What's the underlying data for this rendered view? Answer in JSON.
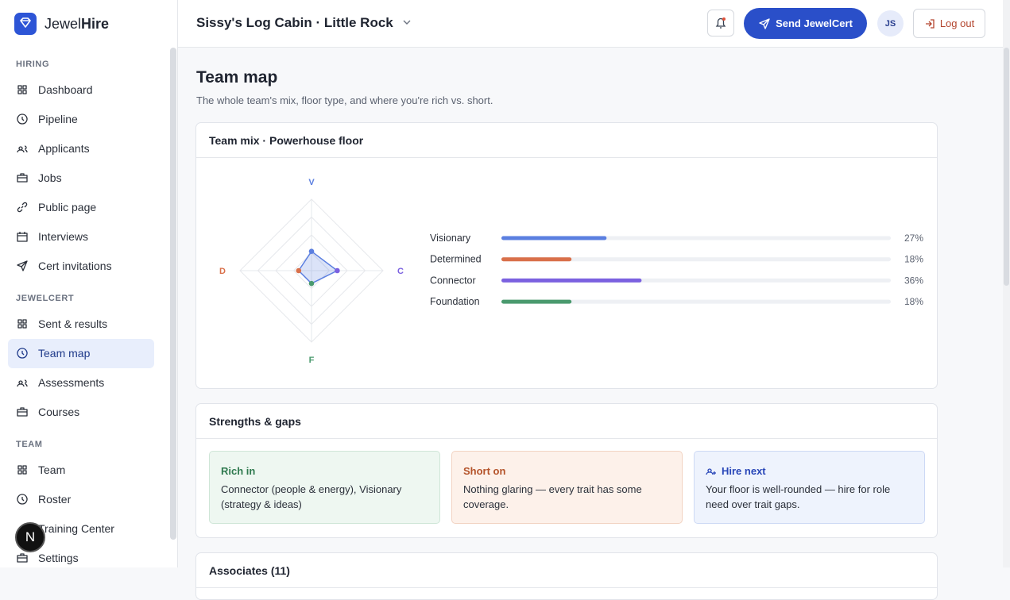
{
  "brand": {
    "first": "Jewel",
    "second": "Hire"
  },
  "sidebar": {
    "active": "Team map",
    "sections": [
      {
        "label": "HIRING",
        "items": [
          "Dashboard",
          "Pipeline",
          "Applicants",
          "Jobs",
          "Public page",
          "Interviews",
          "Cert invitations"
        ]
      },
      {
        "label": "JEWELCERT",
        "items": [
          "Sent & results",
          "Team map",
          "Assessments",
          "Courses"
        ]
      },
      {
        "label": "TEAM",
        "items": [
          "Team",
          "Roster",
          "Training Center",
          "Settings"
        ]
      }
    ]
  },
  "dev_badge": "N",
  "topbar": {
    "location": "Sissy's Log Cabin · Little Rock",
    "send_button": "Send JewelCert",
    "avatar": "JS",
    "logout": "Log out"
  },
  "page": {
    "title": "Team map",
    "subtitle": "The whole team's mix, floor type, and where you're rich vs. short."
  },
  "team_mix": {
    "title": "Team mix · Powerhouse floor",
    "radar_range": [
      0,
      100
    ],
    "radar_rings": [
      25,
      50,
      75,
      100
    ],
    "bar_range": [
      0,
      100
    ],
    "traits": [
      {
        "name": "Visionary",
        "letter": "V",
        "value": 27,
        "value_label": "27%",
        "color": "#5b7fe0"
      },
      {
        "name": "Determined",
        "letter": "D",
        "value": 18,
        "value_label": "18%",
        "color": "#d9704a"
      },
      {
        "name": "Connector",
        "letter": "C",
        "value": 36,
        "value_label": "36%",
        "color": "#7b61e0"
      },
      {
        "name": "Foundation",
        "letter": "F",
        "value": 18,
        "value_label": "18%",
        "color": "#4a9a6e"
      }
    ]
  },
  "strengths": {
    "title": "Strengths & gaps",
    "boxes": [
      {
        "title": "Rich in",
        "text": "Connector (people & energy), Visionary (strategy & ideas)"
      },
      {
        "title": "Short on",
        "text": "Nothing glaring — every trait has some coverage."
      },
      {
        "title": "Hire next",
        "text": "Your floor is well-rounded — hire for role need over trait gaps."
      }
    ]
  },
  "associates": {
    "title": "Associates (11)"
  }
}
